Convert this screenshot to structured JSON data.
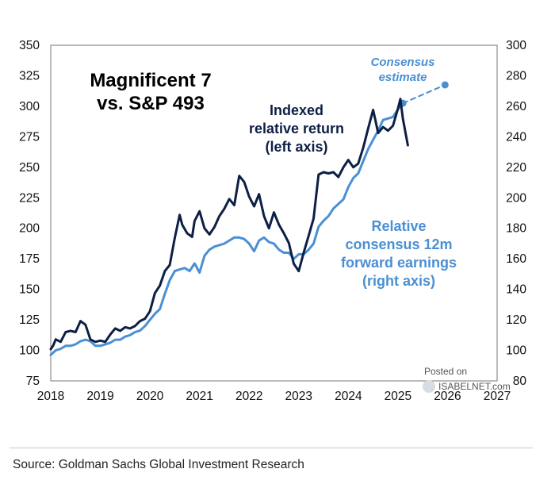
{
  "chart_data": {
    "type": "line",
    "title": [
      "Magnificent 7",
      "vs. S&P 493"
    ],
    "x_ticks": [
      "2018",
      "2019",
      "2020",
      "2021",
      "2022",
      "2023",
      "2024",
      "2025",
      "2026",
      "2027"
    ],
    "xlim": [
      2018,
      2027
    ],
    "left_axis": {
      "ylim": [
        75,
        350
      ],
      "ticks": [
        75,
        100,
        125,
        150,
        175,
        200,
        225,
        250,
        275,
        300,
        325,
        350
      ]
    },
    "right_axis": {
      "ylim": [
        80,
        300
      ],
      "ticks": [
        80,
        100,
        120,
        140,
        160,
        180,
        200,
        220,
        240,
        260,
        280,
        300
      ]
    },
    "series": [
      {
        "name": "Indexed relative return (left axis)",
        "axis": "left",
        "color": "#0d1f45",
        "label": [
          "Indexed",
          "relative return",
          "(left axis)"
        ],
        "x": [
          2018.0,
          2018.05,
          2018.1,
          2018.2,
          2018.3,
          2018.4,
          2018.5,
          2018.6,
          2018.7,
          2018.8,
          2018.9,
          2019.0,
          2019.1,
          2019.2,
          2019.3,
          2019.4,
          2019.5,
          2019.6,
          2019.7,
          2019.8,
          2019.9,
          2020.0,
          2020.1,
          2020.2,
          2020.3,
          2020.4,
          2020.5,
          2020.6,
          2020.65,
          2020.75,
          2020.85,
          2020.9,
          2021.0,
          2021.1,
          2021.2,
          2021.3,
          2021.4,
          2021.5,
          2021.6,
          2021.7,
          2021.8,
          2021.9,
          2021.95,
          2022.0,
          2022.1,
          2022.2,
          2022.3,
          2022.4,
          2022.5,
          2022.6,
          2022.7,
          2022.8,
          2022.9,
          2023.0,
          2023.1,
          2023.2,
          2023.3,
          2023.4,
          2023.5,
          2023.6,
          2023.7,
          2023.8,
          2023.9,
          2024.0,
          2024.1,
          2024.2,
          2024.3,
          2024.4,
          2024.5,
          2024.55,
          2024.6,
          2024.7,
          2024.8,
          2024.9,
          2025.0,
          2025.05,
          2025.1,
          2025.2
        ],
        "values": [
          101,
          104,
          109,
          107,
          115,
          116,
          115,
          124,
          121,
          109,
          107,
          108,
          107,
          113,
          118,
          116,
          119,
          118,
          120,
          124,
          126,
          132,
          147,
          153,
          165,
          170,
          192,
          211,
          203,
          196,
          193,
          206,
          214,
          200,
          195,
          201,
          210,
          216,
          224,
          219,
          243,
          238,
          232,
          226,
          218,
          228,
          210,
          200,
          213,
          203,
          196,
          188,
          171,
          165,
          180,
          194,
          208,
          244,
          246,
          245,
          246,
          242,
          250,
          256,
          250,
          253,
          266,
          282,
          297,
          288,
          278,
          283,
          280,
          284,
          298,
          306,
          290,
          268
        ]
      },
      {
        "name": "Relative consensus 12m forward earnings (right axis)",
        "axis": "right",
        "color": "#4a8fd4",
        "label": [
          "Relative",
          "consensus 12m",
          "forward earnings",
          "(right axis)"
        ],
        "x": [
          2018.0,
          2018.1,
          2018.2,
          2018.3,
          2018.4,
          2018.5,
          2018.6,
          2018.7,
          2018.8,
          2018.9,
          2019.0,
          2019.1,
          2019.2,
          2019.3,
          2019.4,
          2019.5,
          2019.6,
          2019.7,
          2019.8,
          2019.9,
          2020.0,
          2020.1,
          2020.2,
          2020.3,
          2020.4,
          2020.5,
          2020.6,
          2020.7,
          2020.8,
          2020.9,
          2021.0,
          2021.1,
          2021.2,
          2021.3,
          2021.4,
          2021.5,
          2021.6,
          2021.7,
          2021.8,
          2021.9,
          2022.0,
          2022.1,
          2022.2,
          2022.3,
          2022.4,
          2022.5,
          2022.6,
          2022.7,
          2022.8,
          2022.9,
          2023.0,
          2023.1,
          2023.2,
          2023.3,
          2023.4,
          2023.5,
          2023.6,
          2023.7,
          2023.8,
          2023.9,
          2024.0,
          2024.1,
          2024.2,
          2024.3,
          2024.4,
          2024.5,
          2024.6,
          2024.7,
          2024.8,
          2024.9,
          2025.0,
          2025.1
        ],
        "values": [
          97,
          100,
          101,
          103,
          103,
          104,
          106,
          107,
          106,
          103,
          103,
          104,
          105,
          107,
          107,
          109,
          110,
          112,
          113,
          116,
          120,
          124,
          127,
          137,
          146,
          152,
          153,
          154,
          152,
          157,
          151,
          162,
          166,
          168,
          169,
          170,
          172,
          174,
          174,
          173,
          170,
          165,
          172,
          174,
          171,
          170,
          166,
          164,
          164,
          160,
          163,
          163,
          166,
          170,
          181,
          185,
          188,
          193,
          196,
          199,
          207,
          213,
          216,
          224,
          232,
          238,
          244,
          251,
          252,
          253,
          258,
          262
        ]
      },
      {
        "name": "Consensus estimate",
        "axis": "right",
        "color": "#4a8fd4",
        "style": "dashed",
        "label": [
          "Consensus",
          "estimate"
        ],
        "x": [
          2025.1,
          2025.95
        ],
        "values": [
          262,
          274
        ]
      }
    ]
  },
  "watermark": {
    "line1": "Posted on",
    "line2": "ISABELNET.com"
  },
  "source": "Source: Goldman Sachs Global Investment Research",
  "colors": {
    "dark": "#0d1f45",
    "light": "#4a8fd4"
  }
}
